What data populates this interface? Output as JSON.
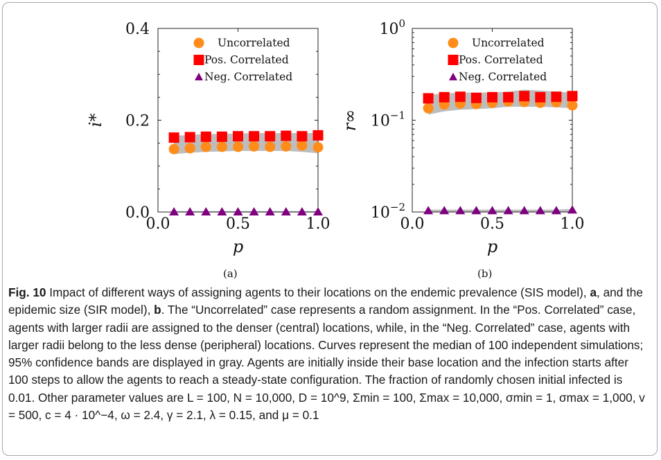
{
  "chart_data": [
    {
      "type": "scatter",
      "panel_label": "(a)",
      "xlabel": "p",
      "ylabel": "i*",
      "xlim": [
        0,
        1
      ],
      "ylim": [
        0,
        0.4
      ],
      "yscale": "linear",
      "xticks": [
        "0.0",
        "0.5",
        "1.0"
      ],
      "yticks": [
        "0.0",
        "0.2",
        "0.4"
      ],
      "legend_position": "top-right",
      "x": [
        0.1,
        0.2,
        0.3,
        0.4,
        0.5,
        0.6,
        0.7,
        0.8,
        0.9,
        1.0
      ],
      "series": [
        {
          "name": "Uncorrelated",
          "marker": "circle",
          "color": "#ff8c1a",
          "values": [
            0.137,
            0.139,
            0.142,
            0.142,
            0.142,
            0.143,
            0.142,
            0.143,
            0.145,
            0.141
          ]
        },
        {
          "name": "Pos. Correlated",
          "marker": "square",
          "color": "#ff0000",
          "values": [
            0.162,
            0.163,
            0.164,
            0.164,
            0.165,
            0.165,
            0.165,
            0.166,
            0.165,
            0.167
          ]
        },
        {
          "name": "Neg. Correlated",
          "marker": "triangle",
          "color": "#800080",
          "values": [
            0.0,
            0.0,
            0.0,
            0.0,
            0.0,
            0.0,
            0.0,
            0.0,
            0.0,
            0.0
          ]
        }
      ],
      "bands": [
        {
          "lower": [
            0.126,
            0.129,
            0.131,
            0.132,
            0.133,
            0.133,
            0.133,
            0.133,
            0.131,
            0.128
          ],
          "upper": [
            0.166,
            0.168,
            0.17,
            0.17,
            0.171,
            0.172,
            0.172,
            0.172,
            0.172,
            0.172
          ]
        },
        {
          "lower": [
            0.0,
            0.0,
            0.0,
            0.0,
            0.0,
            0.0,
            0.0,
            0.0,
            0.0,
            0.0
          ],
          "upper": [
            0.002,
            0.002,
            0.002,
            0.002,
            0.002,
            0.002,
            0.002,
            0.002,
            0.002,
            0.002
          ]
        }
      ]
    },
    {
      "type": "scatter",
      "panel_label": "(b)",
      "xlabel": "p",
      "ylabel": "r∞",
      "xlim": [
        0,
        1
      ],
      "ylim": [
        0.01,
        1
      ],
      "yscale": "log",
      "xticks": [
        "0.0",
        "0.5",
        "1.0"
      ],
      "yticks": [
        "10^-2",
        "10^-1",
        "10^0"
      ],
      "legend_position": "top-right",
      "x": [
        0.1,
        0.2,
        0.3,
        0.4,
        0.5,
        0.6,
        0.7,
        0.8,
        0.9,
        1.0
      ],
      "series": [
        {
          "name": "Uncorrelated",
          "marker": "circle",
          "color": "#ff8c1a",
          "values": [
            0.135,
            0.148,
            0.152,
            0.15,
            0.155,
            0.16,
            0.158,
            0.155,
            0.157,
            0.145
          ]
        },
        {
          "name": "Pos. Correlated",
          "marker": "square",
          "color": "#ff0000",
          "values": [
            0.173,
            0.178,
            0.18,
            0.175,
            0.178,
            0.178,
            0.183,
            0.178,
            0.18,
            0.183
          ]
        },
        {
          "name": "Neg. Correlated",
          "marker": "triangle",
          "color": "#800080",
          "values": [
            0.0103,
            0.0103,
            0.0103,
            0.0103,
            0.0103,
            0.0103,
            0.0103,
            0.0103,
            0.0103,
            0.0105
          ]
        }
      ],
      "bands": [
        {
          "lower": [
            0.115,
            0.125,
            0.13,
            0.132,
            0.135,
            0.14,
            0.14,
            0.14,
            0.138,
            0.135
          ],
          "upper": [
            0.19,
            0.195,
            0.2,
            0.2,
            0.2,
            0.205,
            0.215,
            0.21,
            0.205,
            0.2
          ]
        },
        {
          "lower": [
            0.01,
            0.01,
            0.01,
            0.01,
            0.01,
            0.01,
            0.01,
            0.01,
            0.01,
            0.01
          ],
          "upper": [
            0.0106,
            0.0106,
            0.0106,
            0.0106,
            0.0106,
            0.0106,
            0.0106,
            0.0106,
            0.0106,
            0.0108
          ]
        }
      ]
    }
  ],
  "caption": {
    "prefix": "Fig. 10",
    "s1": "  Impact of different ways of assigning agents to their locations on the endemic prevalence (SIS model), ",
    "a": "a",
    "s2": ", and the epidemic size (SIR model), ",
    "b": "b",
    "s3": ". The “Uncorrelated” case represents a random assignment. In the “Pos. Correlated” case, agents with larger radii are assigned to the denser (central) locations, while, in the “Neg. Correlated” case, agents with larger radii belong to the less dense (peripheral) locations. Curves represent the median of 100 independent simulations; 95% confidence bands are displayed in gray. Agents are initially inside their base location and the infection starts after 100 steps to allow the agents to reach a steady-state configuration. The fraction of randomly chosen initial infected is 0.01. Other parameter values are L = 100, N = 10,000, D = 10^9, Σmin = 100, Σmax = 10,000, σmin = 1, σmax = 1,000, v = 500, c = 4 · 10^−4, ω = 2.4, γ = 2.1, λ = 0.15, and μ = 0.1"
  }
}
